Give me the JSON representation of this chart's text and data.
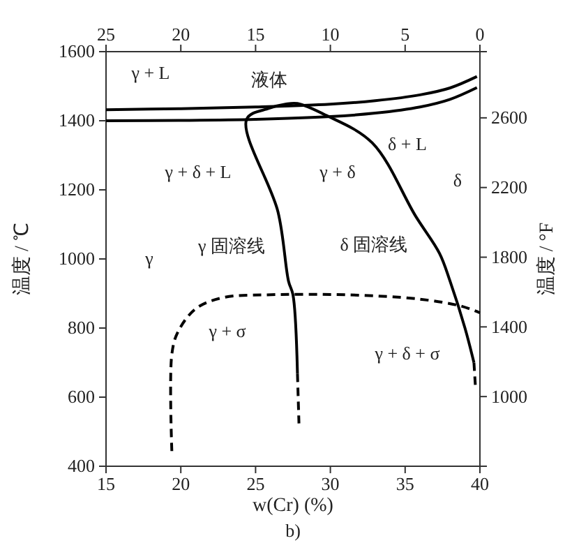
{
  "chart_data": {
    "type": "line",
    "xlabel": "w(Cr) (%)",
    "ylabel": "温度 / ℃",
    "y2label": "温度 / °F",
    "grid": false,
    "xlim": [
      15,
      40
    ],
    "xticks": [
      15,
      20,
      25,
      30,
      35,
      40
    ],
    "x2lim": [
      25,
      0
    ],
    "x2ticks": [
      25,
      20,
      15,
      10,
      5,
      0
    ],
    "ylim": [
      400,
      1600
    ],
    "yticks": [
      400,
      600,
      800,
      1000,
      1200,
      1400,
      1600
    ],
    "y2lim": [
      600,
      2980
    ],
    "y2ticks": [
      1000,
      1400,
      1800,
      2200,
      2600
    ],
    "series": [
      {
        "color": "#000000",
        "line_style": "solid",
        "x": [
          15,
          20,
          25,
          30,
          33,
          36,
          38,
          39.8
        ],
        "values": [
          1432,
          1435,
          1440,
          1448,
          1458,
          1475,
          1495,
          1528
        ]
      },
      {
        "color": "#000000",
        "line_style": "solid",
        "x": [
          15,
          20,
          25,
          30,
          33,
          36,
          38,
          39.8
        ],
        "values": [
          1400,
          1401,
          1404,
          1412,
          1422,
          1440,
          1462,
          1496
        ]
      },
      {
        "color": "#000000",
        "line_style": "solid",
        "x": [
          27.8,
          27.5,
          27.2,
          26.5,
          24.4,
          25.9,
          27,
          27.8,
          29.7,
          32.8,
          35.7,
          37.3,
          38,
          39,
          39.6
        ],
        "values": [
          668,
          896,
          936,
          1136,
          1404,
          1436,
          1448,
          1450,
          1416,
          1336,
          1124,
          1016,
          936,
          800,
          700
        ]
      },
      {
        "color": "#000000",
        "line_style": "dashed",
        "x": [
          39.6,
          39.7
        ],
        "values": [
          700,
          630
        ]
      },
      {
        "color": "#000000",
        "line_style": "dashed",
        "x": [
          27.8,
          27.9
        ],
        "values": [
          668,
          524
        ]
      },
      {
        "color": "#000000",
        "line_style": "dashed",
        "x": [
          19.4,
          19.4,
          19.8,
          21,
          22.8,
          25.6,
          31.2,
          35.9,
          38.7,
          40
        ],
        "values": [
          444,
          724,
          788,
          856,
          888,
          896,
          896,
          884,
          864,
          844
        ]
      }
    ],
    "annotations": [
      "γ + L",
      "液体",
      "δ + L",
      "γ + δ + L",
      "γ + δ",
      "δ",
      "γ 固溶线",
      "δ 固溶线",
      "γ",
      "γ + σ",
      "γ + δ + σ",
      "b)"
    ]
  }
}
